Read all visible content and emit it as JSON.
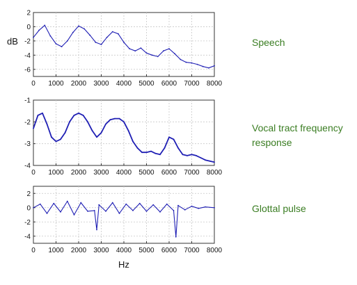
{
  "colors": {
    "line": "#1f1fb4",
    "label": "#3a7d22"
  },
  "chart_data": [
    {
      "type": "line",
      "label": "Speech",
      "ylabel": "dB",
      "xlabel": "",
      "grid": true,
      "xlim": [
        0,
        8000
      ],
      "ylim": [
        -7,
        2
      ],
      "xticks": [
        "0",
        "1000",
        "2000",
        "3000",
        "4000",
        "5000",
        "6000",
        "7000",
        "8000"
      ],
      "yticks": [
        "2",
        "0",
        "-2",
        "-4",
        "-6"
      ],
      "series": [
        {
          "x": [
            0,
            250,
            500,
            750,
            1000,
            1250,
            1500,
            1750,
            2000,
            2250,
            2500,
            2750,
            3000,
            3250,
            3500,
            3750,
            4000,
            4250,
            4500,
            4750,
            5000,
            5250,
            5500,
            5750,
            6000,
            6250,
            6500,
            6750,
            7000,
            7250,
            7500,
            7750,
            8000
          ],
          "y": [
            -1.5,
            -0.5,
            0.2,
            -1.3,
            -2.4,
            -2.8,
            -2.0,
            -0.8,
            0.1,
            -0.3,
            -1.2,
            -2.2,
            -2.5,
            -1.5,
            -0.7,
            -1.0,
            -2.2,
            -3.1,
            -3.4,
            -3.0,
            -3.7,
            -4.0,
            -4.2,
            -3.4,
            -3.1,
            -3.8,
            -4.6,
            -5.0,
            -5.1,
            -5.3,
            -5.6,
            -5.8,
            -5.5
          ]
        }
      ]
    },
    {
      "type": "line",
      "label": "Vocal tract frequency response",
      "xlabel": "",
      "ylabel": "",
      "grid": true,
      "xlim": [
        0,
        8000
      ],
      "ylim": [
        -4,
        -1
      ],
      "xticks": [
        "0",
        "1000",
        "2000",
        "3000",
        "4000",
        "5000",
        "6000",
        "7000",
        "8000"
      ],
      "yticks": [
        "-1",
        "-2",
        "-3",
        "-4"
      ],
      "series": [
        {
          "x": [
            0,
            200,
            400,
            600,
            800,
            1000,
            1200,
            1400,
            1600,
            1800,
            2000,
            2200,
            2400,
            2600,
            2800,
            3000,
            3200,
            3400,
            3600,
            3800,
            4000,
            4200,
            4400,
            4600,
            4800,
            5000,
            5200,
            5400,
            5600,
            5800,
            6000,
            6200,
            6400,
            6600,
            6800,
            7000,
            7200,
            7400,
            7600,
            7800,
            8000
          ],
          "y": [
            -2.3,
            -1.7,
            -1.6,
            -2.1,
            -2.7,
            -2.9,
            -2.8,
            -2.5,
            -2.0,
            -1.7,
            -1.6,
            -1.7,
            -2.0,
            -2.4,
            -2.7,
            -2.5,
            -2.1,
            -1.9,
            -1.85,
            -1.85,
            -2.0,
            -2.4,
            -2.9,
            -3.2,
            -3.4,
            -3.4,
            -3.35,
            -3.45,
            -3.5,
            -3.2,
            -2.7,
            -2.8,
            -3.2,
            -3.5,
            -3.55,
            -3.5,
            -3.55,
            -3.65,
            -3.75,
            -3.8,
            -3.85
          ]
        }
      ]
    },
    {
      "type": "line",
      "label": "Glottal pulse",
      "xlabel": "Hz",
      "ylabel": "",
      "grid": true,
      "xlim": [
        0,
        8000
      ],
      "ylim": [
        -5,
        3
      ],
      "xticks": [
        "0",
        "1000",
        "2000",
        "3000",
        "4000",
        "5000",
        "6000",
        "7000",
        "8000"
      ],
      "yticks": [
        "2",
        "0",
        "-2",
        "-4"
      ],
      "series": [
        {
          "x": [
            0,
            300,
            600,
            900,
            1200,
            1500,
            1800,
            2100,
            2400,
            2700,
            2800,
            2900,
            3200,
            3500,
            3800,
            4100,
            4400,
            4700,
            5000,
            5300,
            5600,
            5900,
            6200,
            6300,
            6400,
            6700,
            7000,
            7300,
            7600,
            8000
          ],
          "y": [
            0.0,
            0.5,
            -0.8,
            0.6,
            -0.6,
            0.9,
            -1.0,
            0.7,
            -0.5,
            -0.4,
            -3.1,
            0.4,
            -0.5,
            0.7,
            -0.8,
            0.5,
            -0.4,
            0.6,
            -0.5,
            0.4,
            -0.6,
            0.5,
            -0.4,
            -4.1,
            0.3,
            -0.3,
            0.2,
            -0.1,
            0.1,
            0.0
          ]
        }
      ]
    }
  ]
}
